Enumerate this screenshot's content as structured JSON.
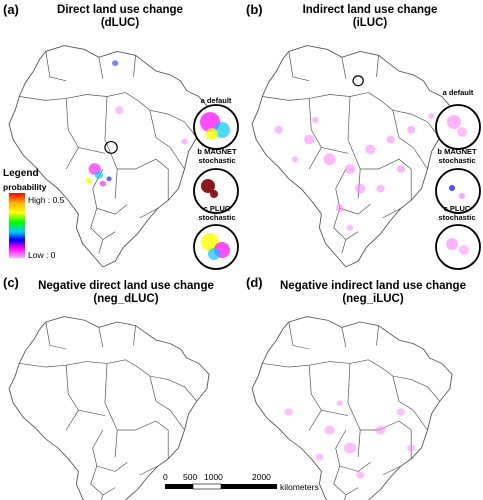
{
  "panels": {
    "a": {
      "tag": "(a)",
      "title_line1": "Direct land use change",
      "title_line2": "(dLUC)"
    },
    "b": {
      "tag": "(b)",
      "title_line1": "Indirect land use change",
      "title_line2": "(iLUC)"
    },
    "c": {
      "tag": "(c)",
      "title_line1": "Negative direct land use change",
      "title_line2": "(neg_dLUC)"
    },
    "d": {
      "tag": "(d)",
      "title_line1": "Negative indirect land use change",
      "title_line2": "(neg_iLUC)"
    }
  },
  "insets": {
    "a_default": {
      "letter": "a",
      "label": "default"
    },
    "a_magnet": {
      "letter": "b",
      "label_line1": "MAGNET",
      "label_line2": "stochastic"
    },
    "a_pluc": {
      "letter": "c",
      "label_line1": "PLUC",
      "label_line2": "stochastic"
    },
    "b_default": {
      "letter": "a",
      "label": "default"
    },
    "b_magnet": {
      "letter": "b",
      "label_line1": "MAGNET",
      "label_line2": "stochastic"
    },
    "b_pluc": {
      "letter": "c",
      "label_line1": "PLUC",
      "label_line2": "stochastic"
    }
  },
  "legend": {
    "title": "Legend",
    "subtitle": "probability",
    "high_label": "High : 0.5",
    "low_label": "Low : 0",
    "gradient_colors": [
      "#ff0000",
      "#ffb000",
      "#ffff00",
      "#00ff00",
      "#00c8ff",
      "#0000ff",
      "#ff00ff",
      "#ffb4ff"
    ]
  },
  "scale_bar": {
    "ticks": [
      "0",
      "500",
      "1000",
      "2000"
    ],
    "unit": "kilometers"
  },
  "colors": {
    "outline": "#555555",
    "inset_ring": "#000000",
    "high": "#ff0000",
    "low": "#ffb4ff"
  }
}
